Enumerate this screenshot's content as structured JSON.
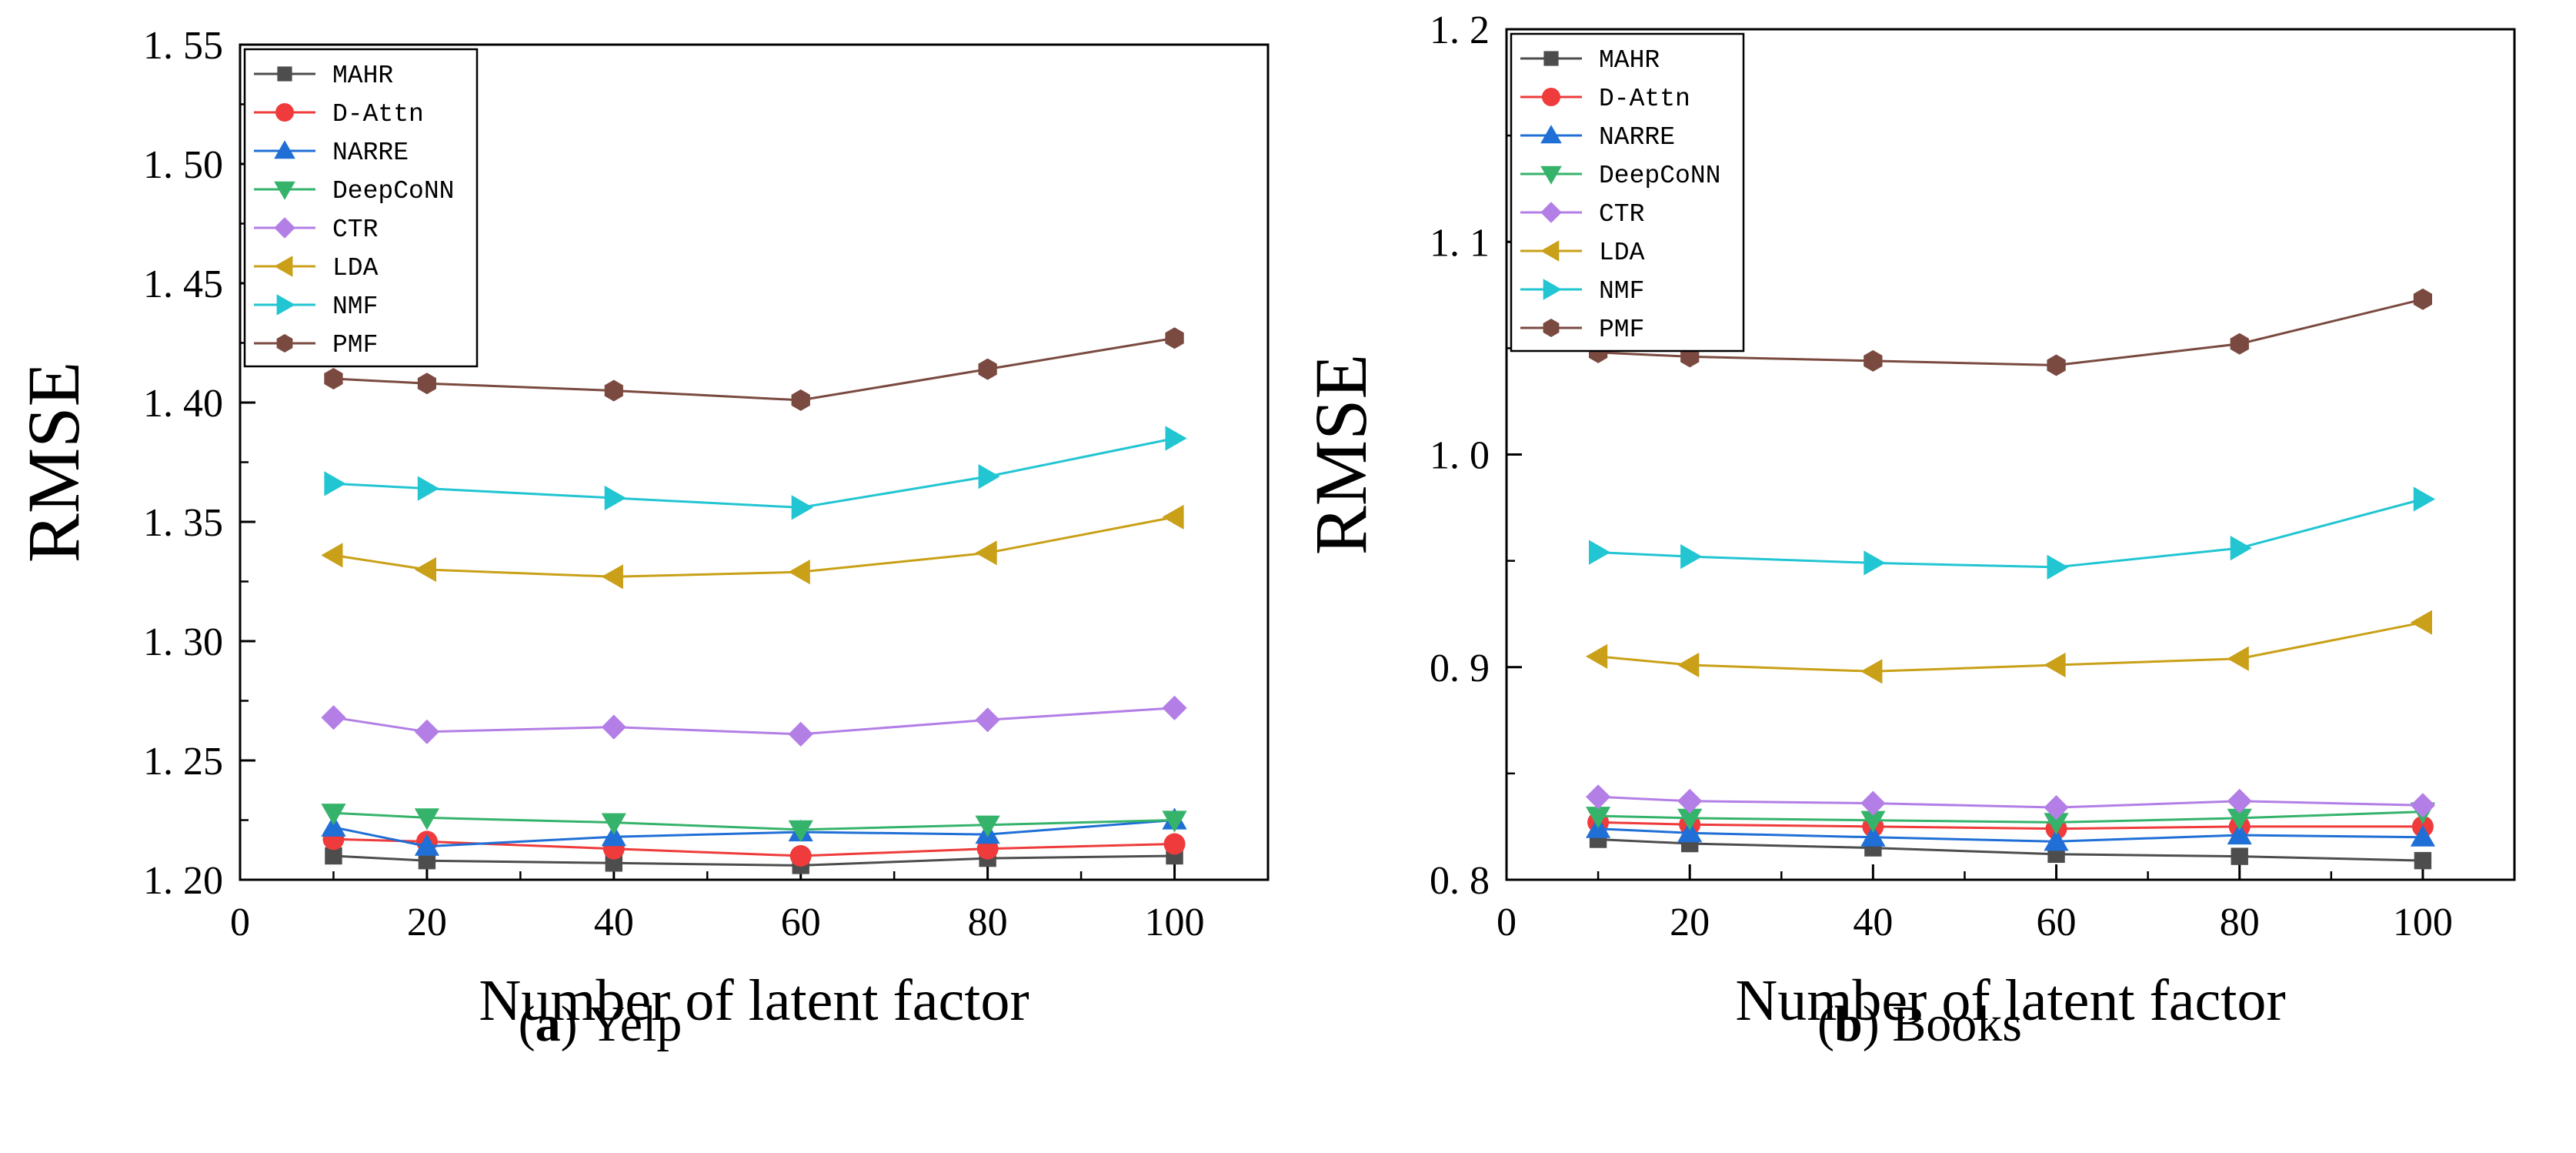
{
  "chart_data": [
    {
      "id": "yelp",
      "type": "line",
      "title": "Yelp",
      "subtitle_letter": "a",
      "xlabel": "Number of latent factor",
      "ylabel": "RMSE",
      "x": [
        10,
        20,
        40,
        60,
        80,
        100
      ],
      "xlim": [
        0,
        110
      ],
      "ylim": [
        1.2,
        1.55
      ],
      "xticks": [
        0,
        20,
        40,
        60,
        80,
        100
      ],
      "yticks": [
        1.2,
        1.25,
        1.3,
        1.35,
        1.4,
        1.45,
        1.5,
        1.55
      ],
      "ytick_labels": [
        "1. 20",
        "1. 25",
        "1. 30",
        "1. 35",
        "1. 40",
        "1. 45",
        "1. 50",
        "1. 55"
      ],
      "legend_position": "top-left",
      "series": [
        {
          "name": "MAHR",
          "color": "#4d4d4d",
          "marker": "square",
          "values": [
            1.21,
            1.208,
            1.207,
            1.206,
            1.209,
            1.21
          ]
        },
        {
          "name": "D-Attn",
          "color": "#ef3b3b",
          "marker": "circle",
          "values": [
            1.217,
            1.216,
            1.213,
            1.21,
            1.213,
            1.215
          ]
        },
        {
          "name": "NARRE",
          "color": "#1f6fd6",
          "marker": "triangle-up",
          "values": [
            1.222,
            1.214,
            1.218,
            1.22,
            1.219,
            1.225
          ]
        },
        {
          "name": "DeepCoNN",
          "color": "#35b36b",
          "marker": "triangle-down",
          "values": [
            1.228,
            1.226,
            1.224,
            1.221,
            1.223,
            1.225
          ]
        },
        {
          "name": "CTR",
          "color": "#b37ee6",
          "marker": "diamond",
          "values": [
            1.268,
            1.262,
            1.264,
            1.261,
            1.267,
            1.272
          ]
        },
        {
          "name": "LDA",
          "color": "#c9a017",
          "marker": "triangle-left",
          "values": [
            1.336,
            1.33,
            1.327,
            1.329,
            1.337,
            1.352
          ]
        },
        {
          "name": "NMF",
          "color": "#22c5d2",
          "marker": "triangle-right",
          "values": [
            1.366,
            1.364,
            1.36,
            1.356,
            1.369,
            1.385
          ]
        },
        {
          "name": "PMF",
          "color": "#7a4a40",
          "marker": "hexagon",
          "values": [
            1.41,
            1.408,
            1.405,
            1.401,
            1.414,
            1.427
          ]
        }
      ]
    },
    {
      "id": "books",
      "type": "line",
      "title": "Books",
      "subtitle_letter": "b",
      "xlabel": "Number of latent factor",
      "ylabel": "RMSE",
      "x": [
        10,
        20,
        40,
        60,
        80,
        100
      ],
      "xlim": [
        0,
        110
      ],
      "ylim": [
        0.8,
        1.2
      ],
      "xticks": [
        0,
        20,
        40,
        60,
        80,
        100
      ],
      "yticks": [
        0.8,
        0.9,
        1.0,
        1.1,
        1.2
      ],
      "ytick_labels": [
        "0. 8",
        "0. 9",
        "1. 0",
        "1. 1",
        "1. 2"
      ],
      "legend_position": "top-left",
      "series": [
        {
          "name": "MAHR",
          "color": "#4d4d4d",
          "marker": "square",
          "values": [
            0.819,
            0.817,
            0.815,
            0.812,
            0.811,
            0.809
          ]
        },
        {
          "name": "D-Attn",
          "color": "#ef3b3b",
          "marker": "circle",
          "values": [
            0.827,
            0.826,
            0.825,
            0.824,
            0.825,
            0.825
          ]
        },
        {
          "name": "NARRE",
          "color": "#1f6fd6",
          "marker": "triangle-up",
          "values": [
            0.824,
            0.822,
            0.82,
            0.818,
            0.821,
            0.82
          ]
        },
        {
          "name": "DeepCoNN",
          "color": "#35b36b",
          "marker": "triangle-down",
          "values": [
            0.83,
            0.829,
            0.828,
            0.827,
            0.829,
            0.832
          ]
        },
        {
          "name": "CTR",
          "color": "#b37ee6",
          "marker": "diamond",
          "values": [
            0.839,
            0.837,
            0.836,
            0.834,
            0.837,
            0.835
          ]
        },
        {
          "name": "LDA",
          "color": "#c9a017",
          "marker": "triangle-left",
          "values": [
            0.905,
            0.901,
            0.898,
            0.901,
            0.904,
            0.921
          ]
        },
        {
          "name": "NMF",
          "color": "#22c5d2",
          "marker": "triangle-right",
          "values": [
            0.954,
            0.952,
            0.949,
            0.947,
            0.956,
            0.979
          ]
        },
        {
          "name": "PMF",
          "color": "#7a4a40",
          "marker": "hexagon",
          "values": [
            1.048,
            1.046,
            1.044,
            1.042,
            1.052,
            1.073
          ]
        }
      ]
    }
  ]
}
